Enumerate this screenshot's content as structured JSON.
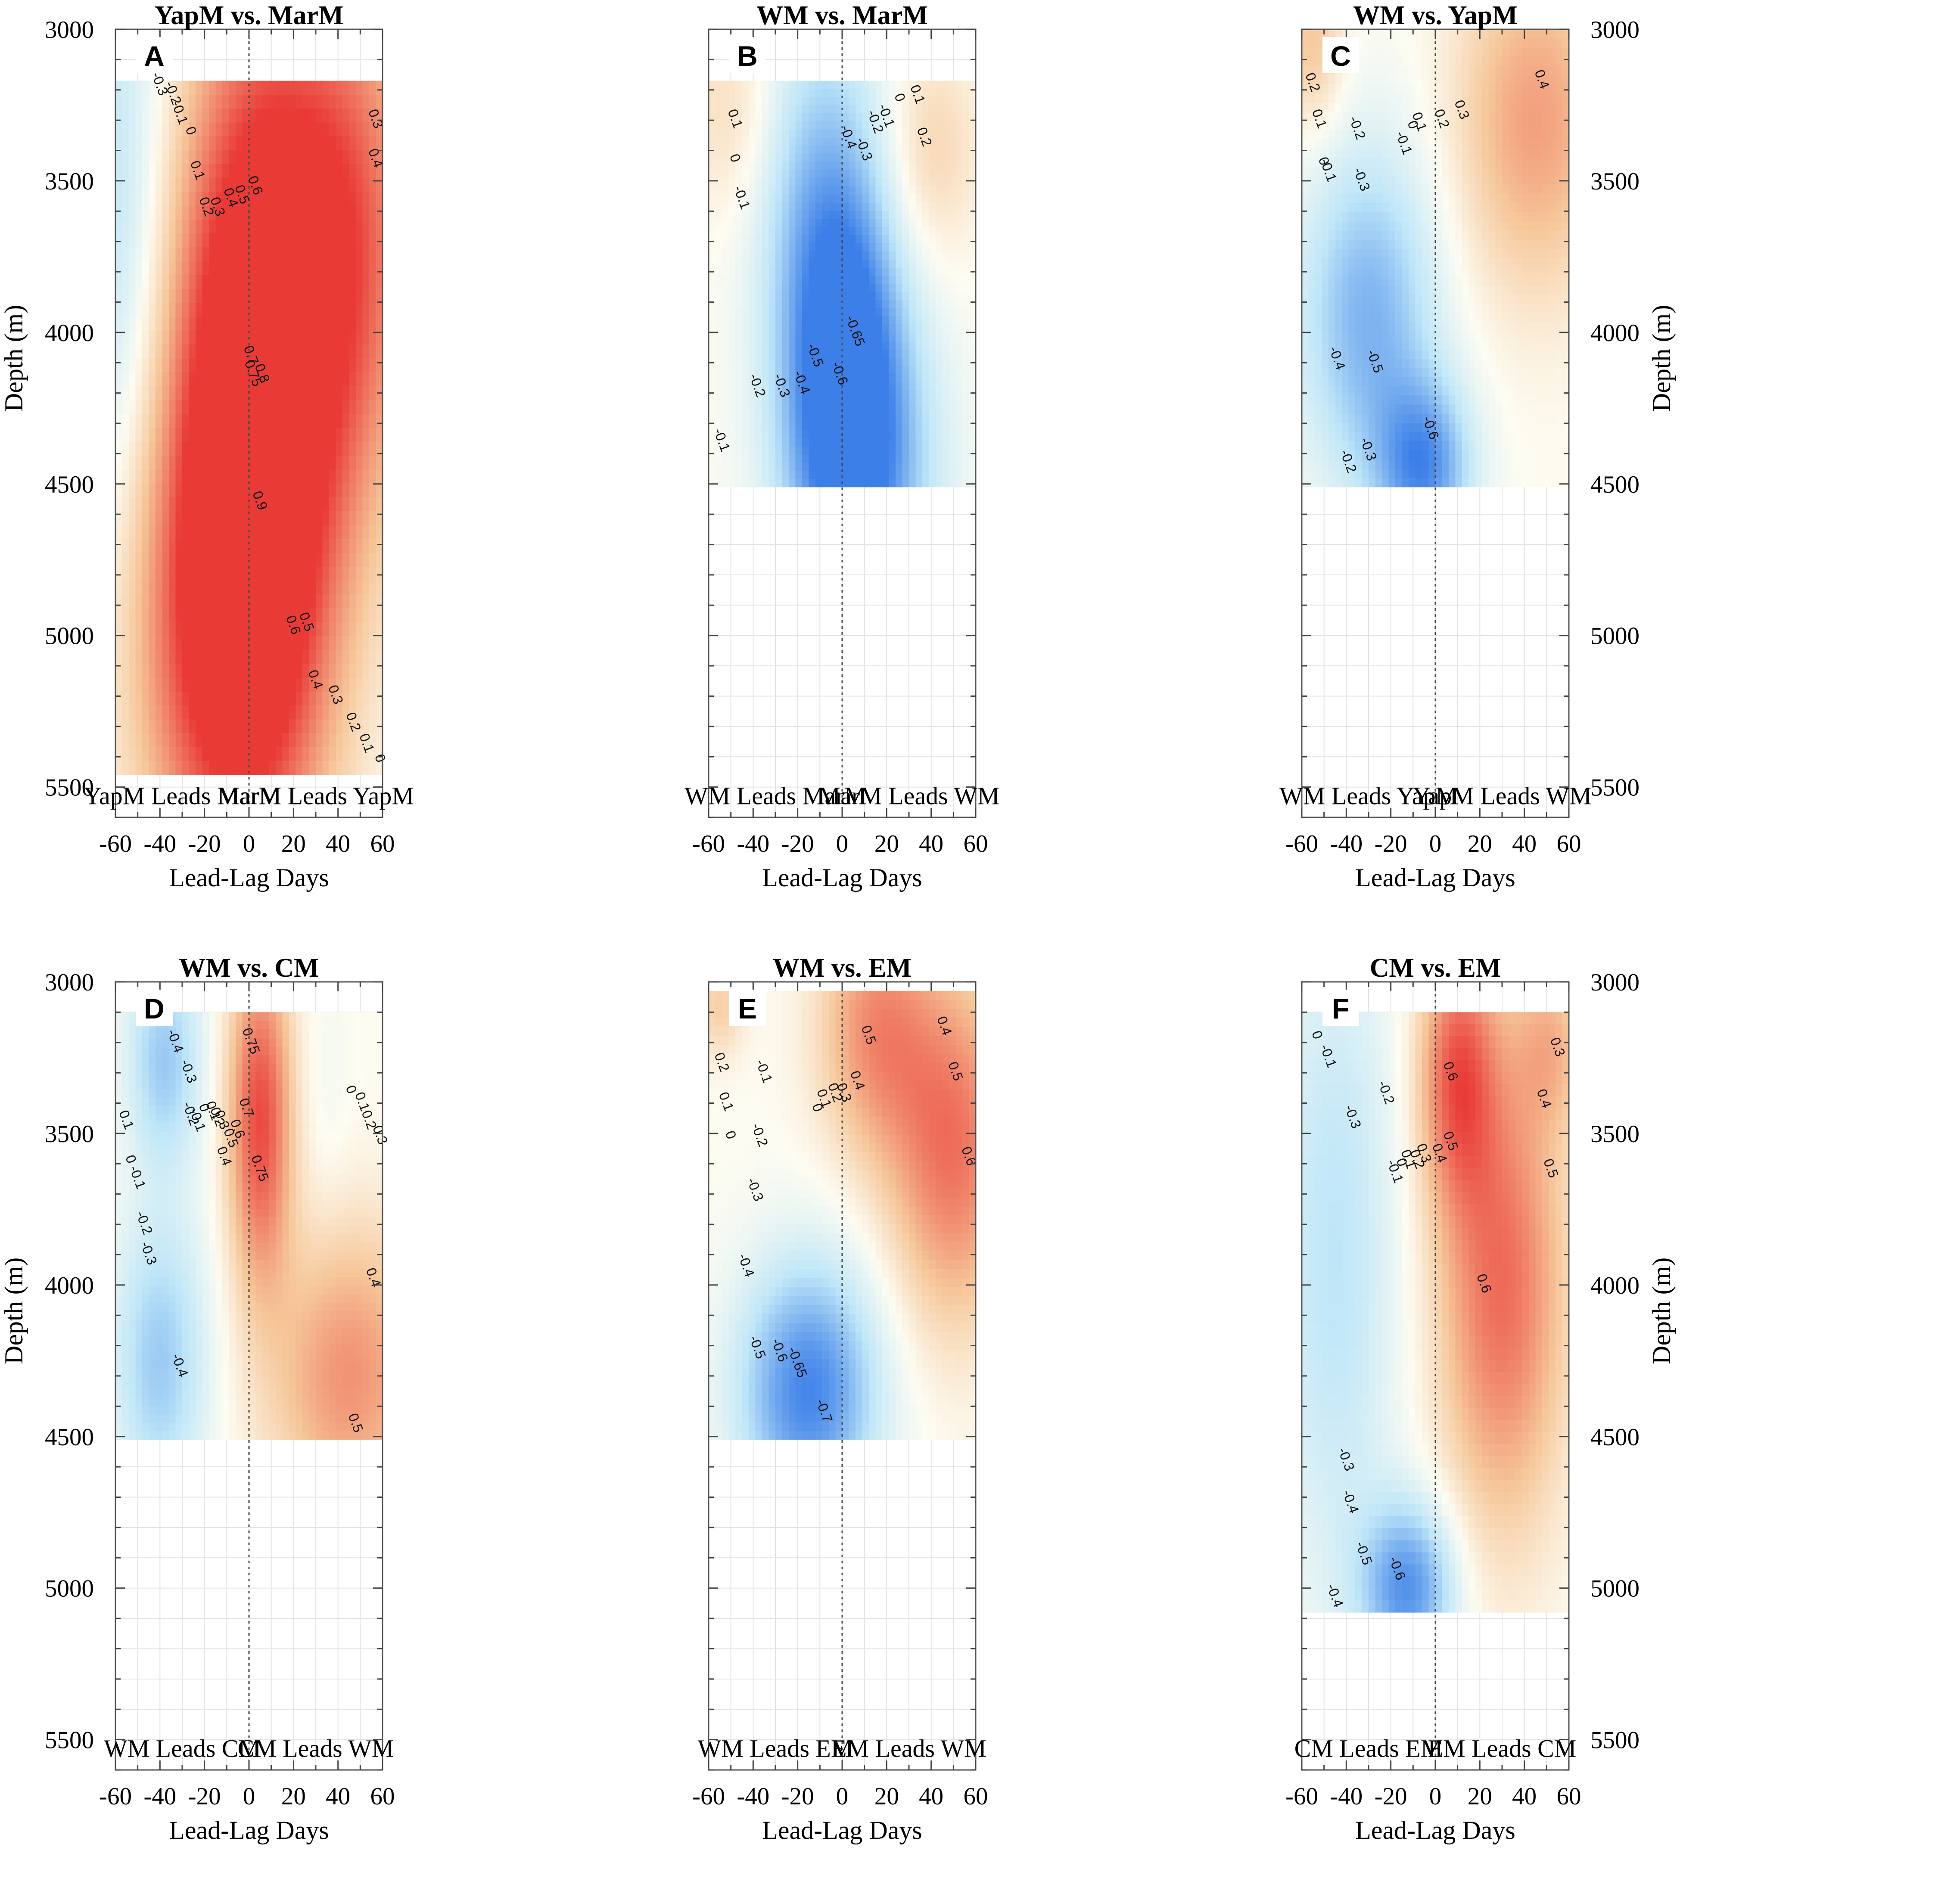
{
  "colors": {
    "strong_negative": "#3c7fe8",
    "weak_negative": "#bfe6f8",
    "neutral": "#fdfcf2",
    "weak_positive": "#f6c79a",
    "strong_positive": "#e93a36",
    "contour": "#3a3a3a"
  },
  "chart_data": [
    {
      "type": "heatmap",
      "letter": "A",
      "title": "YapM vs. MarM",
      "xlabel": "Lead-Lag Days",
      "ylabel": "Depth (m)",
      "xlim": [
        -60,
        60
      ],
      "ylim": [
        3000,
        5600
      ],
      "xticks": [
        "-60",
        "-40",
        "-20",
        "0",
        "20",
        "40",
        "60"
      ],
      "yticks": [
        "3000",
        "3500",
        "4000",
        "4500",
        "5000",
        "5500"
      ],
      "data_depth_range": [
        3170,
        5460
      ],
      "lead_left": "YapM Leads MarM",
      "lead_right": "MarM Leads YapM",
      "field": [
        {
          "x": 0,
          "depth": 4400,
          "value": 0.9,
          "sx": 25,
          "sy": 850,
          "rot": -25
        },
        {
          "x": 20,
          "depth": 3700,
          "value": 0.6,
          "sx": 30,
          "sy": 700,
          "rot": 0
        },
        {
          "x": -10,
          "depth": 5000,
          "value": 0.65,
          "sx": 30,
          "sy": 600,
          "rot": 0
        },
        {
          "x": 50,
          "depth": 3700,
          "value": 0.35,
          "sx": 20,
          "sy": 600,
          "rot": 0
        },
        {
          "x": -60,
          "depth": 3600,
          "value": -0.3,
          "sx": 18,
          "sy": 800,
          "rot": 0
        }
      ],
      "contour_labels": [
        {
          "text": "-0.3",
          "x": -42,
          "depth": 3185
        },
        {
          "text": "-0.2",
          "x": -36,
          "depth": 3215
        },
        {
          "text": "-0.1",
          "x": -33,
          "depth": 3280
        },
        {
          "text": "0",
          "x": -28,
          "depth": 3340
        },
        {
          "text": "0.1",
          "x": -25,
          "depth": 3470
        },
        {
          "text": "0.2",
          "x": -21,
          "depth": 3590
        },
        {
          "text": "0.3",
          "x": -16,
          "depth": 3590
        },
        {
          "text": "0.4",
          "x": -10,
          "depth": 3560
        },
        {
          "text": "0.5",
          "x": -5,
          "depth": 3550
        },
        {
          "text": "0.6",
          "x": 1,
          "depth": 3520
        },
        {
          "text": "0.7",
          "x": -1,
          "depth": 4080
        },
        {
          "text": "0.75",
          "x": 0,
          "depth": 4140
        },
        {
          "text": "0.8",
          "x": 4,
          "depth": 4140
        },
        {
          "text": "0.9",
          "x": 3,
          "depth": 4560
        },
        {
          "text": "0.6",
          "x": 18,
          "depth": 4970
        },
        {
          "text": "0.5",
          "x": 24,
          "depth": 4960
        },
        {
          "text": "0.4",
          "x": 28,
          "depth": 5150
        },
        {
          "text": "0.3",
          "x": 37,
          "depth": 5200
        },
        {
          "text": "0.2",
          "x": 45,
          "depth": 5290
        },
        {
          "text": "0.1",
          "x": 51,
          "depth": 5360
        },
        {
          "text": "0",
          "x": 57,
          "depth": 5410
        },
        {
          "text": "0.3",
          "x": 55,
          "depth": 3300
        },
        {
          "text": "0.4",
          "x": 55,
          "depth": 3430
        }
      ]
    },
    {
      "type": "heatmap",
      "letter": "B",
      "title": "WM vs. MarM",
      "xlabel": "Lead-Lag Days",
      "ylabel": "",
      "xlim": [
        -60,
        60
      ],
      "ylim": [
        3000,
        5600
      ],
      "xticks": [
        "-60",
        "-40",
        "-20",
        "0",
        "20",
        "40",
        "60"
      ],
      "yticks": [
        "3000",
        "3500",
        "4000",
        "4500",
        "5000",
        "5500"
      ],
      "data_depth_range": [
        3170,
        4510
      ],
      "lead_left": "WM Leads MarM",
      "lead_right": "MarM Leads WM",
      "field": [
        {
          "x": 2,
          "depth": 4150,
          "value": -0.68,
          "sx": 18,
          "sy": 450,
          "rot": 0
        },
        {
          "x": -10,
          "depth": 3600,
          "value": -0.4,
          "sx": 20,
          "sy": 500,
          "rot": 0
        },
        {
          "x": 10,
          "depth": 4500,
          "value": -0.45,
          "sx": 25,
          "sy": 400,
          "rot": 0
        },
        {
          "x": 40,
          "depth": 3400,
          "value": 0.22,
          "sx": 15,
          "sy": 250,
          "rot": 0
        },
        {
          "x": -50,
          "depth": 3250,
          "value": 0.18,
          "sx": 15,
          "sy": 250,
          "rot": 0
        }
      ],
      "contour_labels": [
        {
          "text": "0.1",
          "x": -50,
          "depth": 3300
        },
        {
          "text": "0",
          "x": -50,
          "depth": 3430
        },
        {
          "text": "-0.1",
          "x": -47,
          "depth": 3560
        },
        {
          "text": "-0.4",
          "x": 1,
          "depth": 3360
        },
        {
          "text": "-0.3",
          "x": 8,
          "depth": 3400
        },
        {
          "text": "-0.2",
          "x": 13,
          "depth": 3310
        },
        {
          "text": "-0.1",
          "x": 18,
          "depth": 3290
        },
        {
          "text": "0",
          "x": 24,
          "depth": 3230
        },
        {
          "text": "0.1",
          "x": 32,
          "depth": 3220
        },
        {
          "text": "0.2",
          "x": 35,
          "depth": 3360
        },
        {
          "text": "-0.65",
          "x": 4,
          "depth": 4000
        },
        {
          "text": "-0.5",
          "x": -14,
          "depth": 4080
        },
        {
          "text": "-0.6",
          "x": -3,
          "depth": 4140
        },
        {
          "text": "-0.4",
          "x": -20,
          "depth": 4170
        },
        {
          "text": "-0.3",
          "x": -29,
          "depth": 4180
        },
        {
          "text": "-0.2",
          "x": -40,
          "depth": 4180
        },
        {
          "text": "-0.1",
          "x": -56,
          "depth": 4360
        }
      ]
    },
    {
      "type": "heatmap",
      "letter": "C",
      "title": "WM vs. YapM",
      "xlabel": "Lead-Lag Days",
      "ylabel": "Depth (m)",
      "xlim": [
        -60,
        60
      ],
      "ylim": [
        3000,
        5600
      ],
      "xticks": [
        "-60",
        "-40",
        "-20",
        "0",
        "20",
        "40",
        "60"
      ],
      "yticks": [
        "3000",
        "3500",
        "4000",
        "4500",
        "5000",
        "5500"
      ],
      "data_depth_range": [
        3000,
        4510
      ],
      "lead_left": "WM Leads YapM",
      "lead_right": "YapM Leads WM",
      "field": [
        {
          "x": -30,
          "depth": 3950,
          "value": -0.52,
          "sx": 22,
          "sy": 400,
          "rot": 0
        },
        {
          "x": -5,
          "depth": 4450,
          "value": -0.62,
          "sx": 15,
          "sy": 200,
          "rot": 0
        },
        {
          "x": 45,
          "depth": 3300,
          "value": 0.45,
          "sx": 25,
          "sy": 400,
          "rot": 0
        },
        {
          "x": -55,
          "depth": 3050,
          "value": 0.3,
          "sx": 10,
          "sy": 200,
          "rot": 0
        }
      ],
      "contour_labels": [
        {
          "text": "0.2",
          "x": -57,
          "depth": 3180
        },
        {
          "text": "0.1",
          "x": -54,
          "depth": 3300
        },
        {
          "text": "0",
          "x": -52,
          "depth": 3440
        },
        {
          "text": "-0.1",
          "x": -50,
          "depth": 3470
        },
        {
          "text": "-0.2",
          "x": -37,
          "depth": 3330
        },
        {
          "text": "-0.3",
          "x": -35,
          "depth": 3500
        },
        {
          "text": "0",
          "x": -12,
          "depth": 3320
        },
        {
          "text": "-0.1",
          "x": -16,
          "depth": 3380
        },
        {
          "text": "0.1",
          "x": -9,
          "depth": 3310
        },
        {
          "text": "0.2",
          "x": 1,
          "depth": 3300
        },
        {
          "text": "0.3",
          "x": 10,
          "depth": 3270
        },
        {
          "text": "0.4",
          "x": 46,
          "depth": 3170
        },
        {
          "text": "-0.4",
          "x": -46,
          "depth": 4090
        },
        {
          "text": "-0.5",
          "x": -29,
          "depth": 4100
        },
        {
          "text": "-0.3",
          "x": -32,
          "depth": 4390
        },
        {
          "text": "-0.2",
          "x": -41,
          "depth": 4430
        },
        {
          "text": "-0.6",
          "x": -4,
          "depth": 4320
        }
      ]
    },
    {
      "type": "heatmap",
      "letter": "D",
      "title": "WM vs. CM",
      "xlabel": "Lead-Lag Days",
      "ylabel": "Depth (m)",
      "xlim": [
        -60,
        60
      ],
      "ylim": [
        3000,
        5600
      ],
      "xticks": [
        "-60",
        "-40",
        "-20",
        "0",
        "20",
        "40",
        "60"
      ],
      "yticks": [
        "3000",
        "3500",
        "4000",
        "4500",
        "5000",
        "5500"
      ],
      "data_depth_range": [
        3100,
        4510
      ],
      "lead_left": "WM Leads CM",
      "lead_right": "CM Leads WM",
      "field": [
        {
          "x": 5,
          "depth": 3450,
          "value": 0.78,
          "sx": 10,
          "sy": 380,
          "rot": 0
        },
        {
          "x": -38,
          "depth": 3250,
          "value": -0.42,
          "sx": 12,
          "sy": 250,
          "rot": 0
        },
        {
          "x": -40,
          "depth": 4250,
          "value": -0.42,
          "sx": 15,
          "sy": 350,
          "rot": 0
        },
        {
          "x": 45,
          "depth": 4300,
          "value": 0.5,
          "sx": 25,
          "sy": 350,
          "rot": 0
        },
        {
          "x": 35,
          "depth": 3400,
          "value": -0.05,
          "sx": 8,
          "sy": 300,
          "rot": 0
        }
      ],
      "contour_labels": [
        {
          "text": "-0.4",
          "x": -35,
          "depth": 3200
        },
        {
          "text": "-0.3",
          "x": -29,
          "depth": 3300
        },
        {
          "text": "-0.2",
          "x": -28,
          "depth": 3440
        },
        {
          "text": "-0.1",
          "x": -25,
          "depth": 3460
        },
        {
          "text": "0",
          "x": -22,
          "depth": 3420
        },
        {
          "text": "0.1",
          "x": -18,
          "depth": 3430
        },
        {
          "text": "0.2",
          "x": -16,
          "depth": 3450
        },
        {
          "text": "0.3",
          "x": -14,
          "depth": 3460
        },
        {
          "text": "0.4",
          "x": -13,
          "depth": 3580
        },
        {
          "text": "0.5",
          "x": -10,
          "depth": 3520
        },
        {
          "text": "0.6",
          "x": -7,
          "depth": 3490
        },
        {
          "text": "0.7",
          "x": -3,
          "depth": 3420
        },
        {
          "text": "0.75",
          "x": -1,
          "depth": 3200
        },
        {
          "text": "0.75",
          "x": 3,
          "depth": 3620
        },
        {
          "text": "0",
          "x": 44,
          "depth": 3360
        },
        {
          "text": "0.1",
          "x": 49,
          "depth": 3400
        },
        {
          "text": "0.2",
          "x": 52,
          "depth": 3460
        },
        {
          "text": "0.3",
          "x": 57,
          "depth": 3510
        },
        {
          "text": "0.4",
          "x": 54,
          "depth": 3980
        },
        {
          "text": "0.5",
          "x": 46,
          "depth": 4460
        },
        {
          "text": "0.1",
          "x": -57,
          "depth": 3460
        },
        {
          "text": "0",
          "x": -55,
          "depth": 3590
        },
        {
          "text": "-0.1",
          "x": -52,
          "depth": 3650
        },
        {
          "text": "-0.2",
          "x": -49,
          "depth": 3800
        },
        {
          "text": "-0.3",
          "x": -47,
          "depth": 3900
        },
        {
          "text": "-0.4",
          "x": -33,
          "depth": 4270
        }
      ]
    },
    {
      "type": "heatmap",
      "letter": "E",
      "title": "WM vs. EM",
      "xlabel": "Lead-Lag Days",
      "ylabel": "",
      "xlim": [
        -60,
        60
      ],
      "ylim": [
        3000,
        5600
      ],
      "xticks": [
        "-60",
        "-40",
        "-20",
        "0",
        "20",
        "40",
        "60"
      ],
      "yticks": [
        "3000",
        "3500",
        "4000",
        "4500",
        "5000",
        "5500"
      ],
      "data_depth_range": [
        3030,
        4510
      ],
      "lead_left": "WM Leads EM",
      "lead_right": "EM Leads WM",
      "field": [
        {
          "x": -15,
          "depth": 4350,
          "value": -0.72,
          "sx": 22,
          "sy": 300,
          "rot": 0
        },
        {
          "x": 50,
          "depth": 3550,
          "value": 0.62,
          "sx": 20,
          "sy": 400,
          "rot": 0
        },
        {
          "x": 15,
          "depth": 3150,
          "value": 0.5,
          "sx": 18,
          "sy": 300,
          "rot": 0
        },
        {
          "x": -55,
          "depth": 3080,
          "value": 0.25,
          "sx": 8,
          "sy": 120,
          "rot": 0
        }
      ],
      "contour_labels": [
        {
          "text": "0.2",
          "x": -56,
          "depth": 3270
        },
        {
          "text": "0.1",
          "x": -54,
          "depth": 3400
        },
        {
          "text": "0",
          "x": -52,
          "depth": 3510
        },
        {
          "text": "-0.1",
          "x": -37,
          "depth": 3300
        },
        {
          "text": "-0.2",
          "x": -39,
          "depth": 3510
        },
        {
          "text": "-0.3",
          "x": -41,
          "depth": 3690
        },
        {
          "text": "-0.4",
          "x": -45,
          "depth": 3940
        },
        {
          "text": "-0.5",
          "x": -40,
          "depth": 4210
        },
        {
          "text": "-0.6",
          "x": -30,
          "depth": 4220
        },
        {
          "text": "-0.65",
          "x": -22,
          "depth": 4260
        },
        {
          "text": "-0.7",
          "x": -10,
          "depth": 4420
        },
        {
          "text": "0",
          "x": -13,
          "depth": 3420
        },
        {
          "text": "0.1",
          "x": -10,
          "depth": 3390
        },
        {
          "text": "0.2",
          "x": -5,
          "depth": 3370
        },
        {
          "text": "0.3",
          "x": -1,
          "depth": 3370
        },
        {
          "text": "0.4",
          "x": 5,
          "depth": 3330
        },
        {
          "text": "0.5",
          "x": 10,
          "depth": 3180
        },
        {
          "text": "0.4",
          "x": 44,
          "depth": 3150
        },
        {
          "text": "0.5",
          "x": 49,
          "depth": 3300
        },
        {
          "text": "0.6",
          "x": 55,
          "depth": 3580
        }
      ]
    },
    {
      "type": "heatmap",
      "letter": "F",
      "title": "CM vs. EM",
      "xlabel": "Lead-Lag Days",
      "ylabel": "Depth (m)",
      "xlim": [
        -60,
        60
      ],
      "ylim": [
        3000,
        5600
      ],
      "xticks": [
        "-60",
        "-40",
        "-20",
        "0",
        "20",
        "40",
        "60"
      ],
      "yticks": [
        "3000",
        "3500",
        "4000",
        "4500",
        "5000",
        "5500"
      ],
      "data_depth_range": [
        3100,
        5080
      ],
      "lead_left": "CM Leads EM",
      "lead_right": "EM Leads CM",
      "field": [
        {
          "x": 30,
          "depth": 4000,
          "value": 0.65,
          "sx": 20,
          "sy": 550,
          "rot": 0
        },
        {
          "x": 10,
          "depth": 3300,
          "value": 0.65,
          "sx": 12,
          "sy": 300,
          "rot": 0
        },
        {
          "x": -12,
          "depth": 5000,
          "value": -0.65,
          "sx": 15,
          "sy": 200,
          "rot": 0
        },
        {
          "x": -45,
          "depth": 3900,
          "value": -0.3,
          "sx": 20,
          "sy": 800,
          "rot": 0
        },
        {
          "x": 52,
          "depth": 3200,
          "value": 0.3,
          "sx": 12,
          "sy": 200,
          "rot": 0
        }
      ],
      "contour_labels": [
        {
          "text": "0",
          "x": -55,
          "depth": 3180
        },
        {
          "text": "-0.1",
          "x": -50,
          "depth": 3250
        },
        {
          "text": "-0.3",
          "x": -39,
          "depth": 3450
        },
        {
          "text": "-0.2",
          "x": -24,
          "depth": 3370
        },
        {
          "text": "-0.1",
          "x": -20,
          "depth": 3630
        },
        {
          "text": "0",
          "x": -17,
          "depth": 3600
        },
        {
          "text": "0.1",
          "x": -14,
          "depth": 3590
        },
        {
          "text": "0.2",
          "x": -10,
          "depth": 3590
        },
        {
          "text": "0.3",
          "x": -7,
          "depth": 3570
        },
        {
          "text": "0.4",
          "x": 0,
          "depth": 3570
        },
        {
          "text": "0.5",
          "x": 5,
          "depth": 3530
        },
        {
          "text": "0.6",
          "x": 5,
          "depth": 3300
        },
        {
          "text": "0.3",
          "x": 53,
          "depth": 3220
        },
        {
          "text": "0.4",
          "x": 47,
          "depth": 3390
        },
        {
          "text": "0.5",
          "x": 50,
          "depth": 3620
        },
        {
          "text": "0.6",
          "x": 20,
          "depth": 4000
        },
        {
          "text": "-0.3",
          "x": -42,
          "depth": 4580
        },
        {
          "text": "-0.4",
          "x": -40,
          "depth": 4720
        },
        {
          "text": "-0.5",
          "x": -34,
          "depth": 4890
        },
        {
          "text": "-0.6",
          "x": -19,
          "depth": 4940
        },
        {
          "text": "-0.4",
          "x": -47,
          "depth": 5030
        }
      ]
    }
  ]
}
